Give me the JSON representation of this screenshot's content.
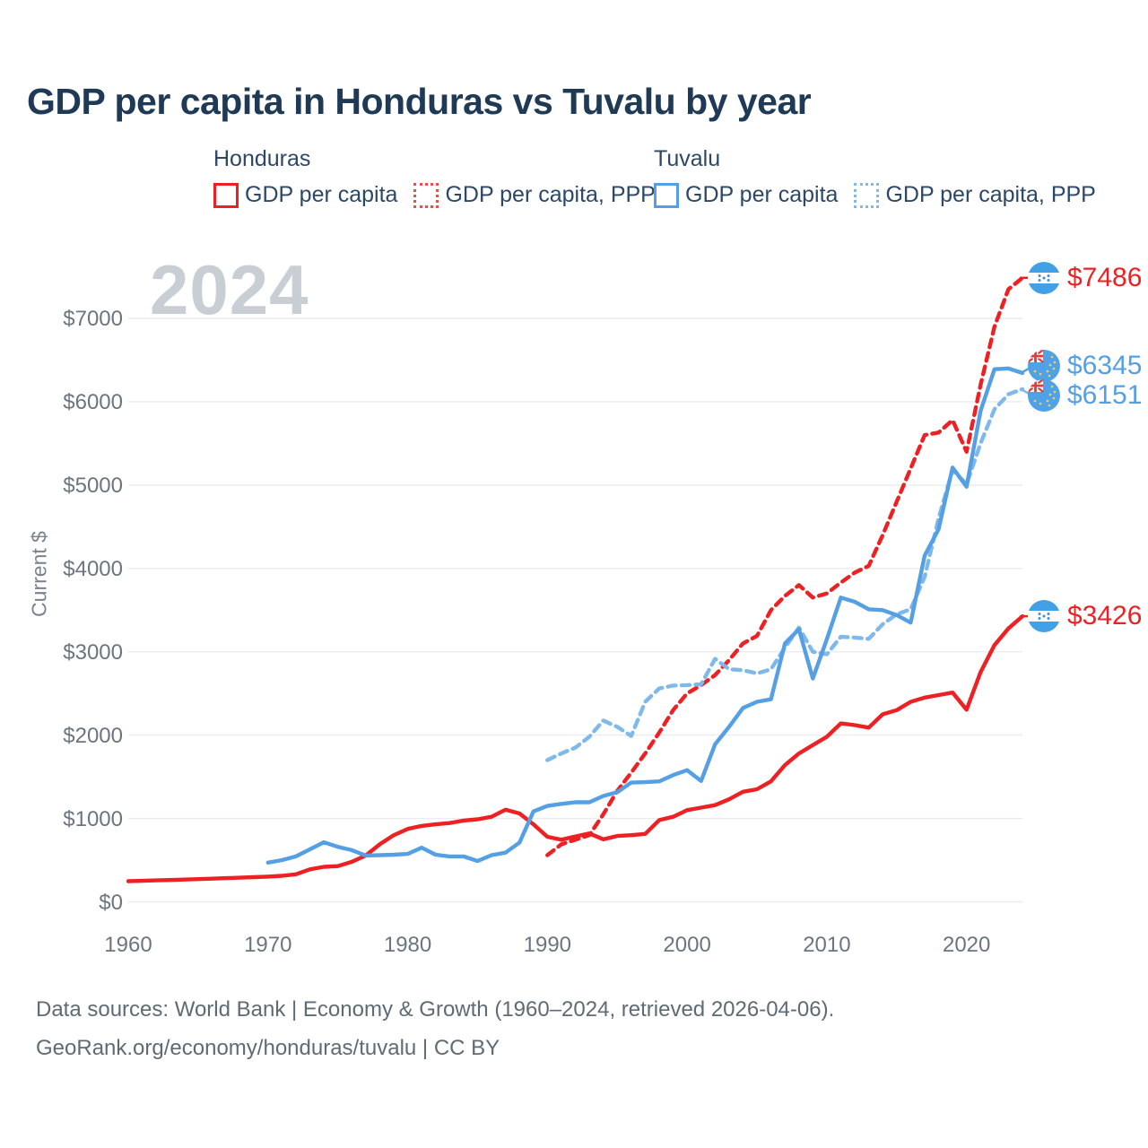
{
  "title": "GDP per capita in Honduras vs Tuvalu by year",
  "watermark": "2024",
  "colors": {
    "red": "#ed2124",
    "blue": "#55a0e4",
    "blue_light": "#7fb9ec",
    "title_navy": "#1e3a56",
    "gridline": "#eaecee",
    "tick_gray": "#6b7580",
    "watermark_gray": "#c9ced5"
  },
  "legend": {
    "groups": [
      {
        "country": "Honduras",
        "items": [
          {
            "label": "GDP per capita",
            "style": "solid",
            "color": "#ed2124"
          },
          {
            "label": "GDP per capita, PPP",
            "style": "dotted",
            "color": "#ee4b4b"
          }
        ]
      },
      {
        "country": "Tuvalu",
        "items": [
          {
            "label": "GDP per capita",
            "style": "solid",
            "color": "#55a0e4"
          },
          {
            "label": "GDP per capita, PPP",
            "style": "dotted",
            "color": "#7fb9ec"
          }
        ]
      }
    ]
  },
  "y_axis": {
    "title": "Current $",
    "ticks": [
      {
        "value": 0,
        "label": "$0"
      },
      {
        "value": 1000,
        "label": "$1000"
      },
      {
        "value": 2000,
        "label": "$2000"
      },
      {
        "value": 3000,
        "label": "$3000"
      },
      {
        "value": 4000,
        "label": "$4000"
      },
      {
        "value": 5000,
        "label": "$5000"
      },
      {
        "value": 6000,
        "label": "$6000"
      },
      {
        "value": 7000,
        "label": "$7000"
      }
    ]
  },
  "x_axis": {
    "ticks": [
      {
        "value": 1960,
        "label": "1960"
      },
      {
        "value": 1970,
        "label": "1970"
      },
      {
        "value": 1980,
        "label": "1980"
      },
      {
        "value": 1990,
        "label": "1990"
      },
      {
        "value": 2000,
        "label": "2000"
      },
      {
        "value": 2010,
        "label": "2010"
      },
      {
        "value": 2020,
        "label": "2020"
      }
    ]
  },
  "footer": {
    "line1": "Data sources: World Bank | Economy & Growth (1960–2024, retrieved 2026-04-06).",
    "line2": "GeoRank.org/economy/honduras/tuvalu | CC BY"
  },
  "chart_data": {
    "type": "line",
    "title": "GDP per capita in Honduras vs Tuvalu by year",
    "xlabel": "year",
    "ylabel": "Current $",
    "x_range": [
      1960,
      2024
    ],
    "ylim": [
      0,
      7500
    ],
    "grid": true,
    "series": [
      {
        "name": "Honduras GDP per capita",
        "country": "Honduras",
        "flag": "honduras",
        "style": "solid",
        "color": "#ed2124",
        "end_label": "$3426",
        "start_year": 1960,
        "values": [
          247,
          252,
          257,
          262,
          267,
          272,
          278,
          284,
          290,
          296,
          302,
          312,
          330,
          390,
          420,
          428,
          480,
          555,
          690,
          800,
          875,
          910,
          930,
          945,
          975,
          990,
          1020,
          1105,
          1060,
          930,
          780,
          745,
          785,
          820,
          750,
          790,
          800,
          815,
          980,
          1020,
          1100,
          1130,
          1160,
          1230,
          1320,
          1350,
          1445,
          1640,
          1780,
          1880,
          1980,
          2140,
          2120,
          2090,
          2250,
          2300,
          2400,
          2450,
          2480,
          2510,
          2305,
          2755,
          3080,
          3280,
          3426
        ]
      },
      {
        "name": "Honduras GDP per capita, PPP",
        "country": "Honduras",
        "flag": "honduras",
        "style": "dashed",
        "color": "#ed2124",
        "end_label": "$7486",
        "start_year": 1990,
        "values": [
          560,
          690,
          745,
          800,
          1050,
          1330,
          1550,
          1780,
          2030,
          2300,
          2500,
          2600,
          2720,
          2900,
          3100,
          3190,
          3500,
          3670,
          3800,
          3650,
          3700,
          3830,
          3950,
          4030,
          4400,
          4800,
          5200,
          5600,
          5630,
          5780,
          5400,
          6200,
          6900,
          7350,
          7486
        ]
      },
      {
        "name": "Tuvalu GDP per capita",
        "country": "Tuvalu",
        "flag": "tuvalu",
        "style": "solid",
        "color": "#55a0e4",
        "end_label": "$6345",
        "start_year": 1970,
        "values": [
          470,
          500,
          545,
          630,
          715,
          660,
          620,
          555,
          560,
          565,
          575,
          650,
          565,
          545,
          545,
          490,
          560,
          590,
          710,
          1085,
          1150,
          1175,
          1195,
          1195,
          1270,
          1315,
          1430,
          1435,
          1445,
          1520,
          1580,
          1450,
          1890,
          2100,
          2325,
          2400,
          2430,
          3100,
          3270,
          2680,
          3150,
          3650,
          3600,
          3510,
          3500,
          3440,
          3350,
          4155,
          4470,
          5210,
          4980,
          5890,
          6390,
          6400,
          6345
        ]
      },
      {
        "name": "Tuvalu GDP per capita, PPP",
        "country": "Tuvalu",
        "flag": "tuvalu",
        "style": "dashed",
        "color": "#7fb9ec",
        "end_label": "$6151",
        "start_year": 1990,
        "values": [
          1700,
          1780,
          1850,
          1980,
          2175,
          2100,
          1990,
          2400,
          2560,
          2595,
          2600,
          2610,
          2915,
          2790,
          2780,
          2740,
          2790,
          3050,
          3290,
          3000,
          2970,
          3180,
          3170,
          3155,
          3330,
          3450,
          3510,
          3900,
          4600,
          5180,
          5010,
          5500,
          5910,
          6090,
          6151
        ]
      }
    ]
  }
}
